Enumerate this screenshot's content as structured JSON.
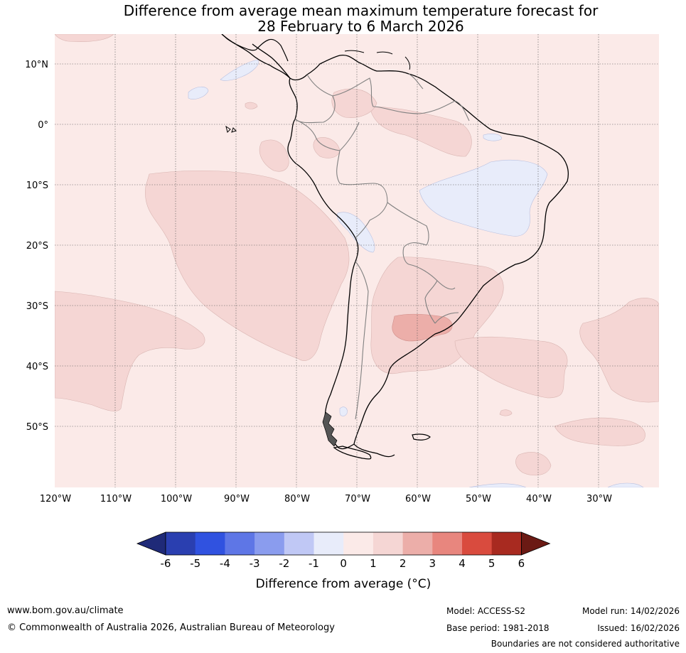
{
  "title": {
    "line1": "Difference from average mean maximum temperature forecast for",
    "line2": "28 February to 6 March 2026"
  },
  "map": {
    "lat_labels": [
      "10°N",
      "0°",
      "10°S",
      "20°S",
      "30°S",
      "40°S",
      "50°S"
    ],
    "lon_labels": [
      "120°W",
      "110°W",
      "100°W",
      "90°W",
      "80°W",
      "70°W",
      "60°W",
      "50°W",
      "40°W",
      "30°W"
    ],
    "colors": {
      "background_bin_0_1": "#fbeae8",
      "bin_1_2": "#f5d6d4",
      "bin_2_3": "#ecaea9",
      "bin_neg1_0": "#e8ecfa",
      "coast": "#000000",
      "borders": "#808080",
      "grid": "#555555"
    }
  },
  "colorbar": {
    "ticks": [
      "-6",
      "-5",
      "-4",
      "-3",
      "-2",
      "-1",
      "0",
      "1",
      "2",
      "3",
      "4",
      "5",
      "6"
    ],
    "colors": [
      "#1f2a78",
      "#2a3fb0",
      "#3052e0",
      "#5e76e6",
      "#8a9cee",
      "#c0c8f5",
      "#e8ecfa",
      "#fbeae8",
      "#f5d6d4",
      "#ecaea9",
      "#e8867e",
      "#d94b3e",
      "#a82a20",
      "#6b1a14"
    ],
    "label": "Difference from average (°C)"
  },
  "footer": {
    "url": "www.bom.gov.au/climate",
    "copyright": "© Commonwealth of Australia 2026, Australian Bureau of Meteorology",
    "model": "Model: ACCESS-S2",
    "base_period": "Base period: 1981-2018",
    "model_run": "Model run: 14/02/2026",
    "issued": "Issued: 16/02/2026",
    "disclaimer": "Boundaries are not considered authoritative"
  }
}
